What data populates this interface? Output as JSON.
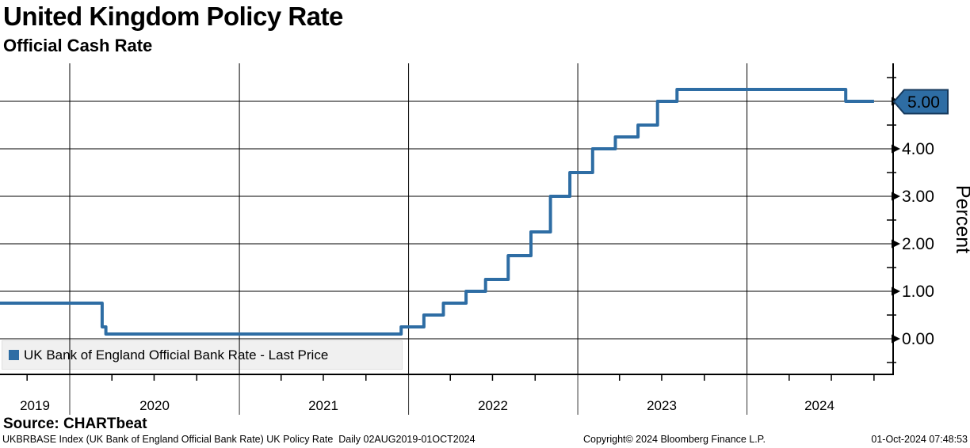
{
  "header": {
    "title": "United Kingdom Policy Rate",
    "subtitle": "Official Cash Rate"
  },
  "legend": {
    "label": "UK Bank of England Official Bank Rate - Last Price",
    "swatch_color": "#2e6da4"
  },
  "axes": {
    "y": {
      "title": "Percent",
      "labels": [
        "0.00",
        "1.00",
        "2.00",
        "3.00",
        "4.00"
      ],
      "last_price_badge": "5.00"
    },
    "x": {
      "labels": [
        "2019",
        "2020",
        "2021",
        "2022",
        "2023",
        "2024"
      ]
    }
  },
  "footer": {
    "source": "Source: CHARTbeat",
    "info": "UKBRBASE Index (UK Bank of England Official Bank Rate) UK Policy Rate  Daily 02AUG2019-01OCT2024",
    "copyright": "Copyright© 2024 Bloomberg Finance L.P.",
    "timestamp": "01-Oct-2024 07:48:53"
  },
  "chart_data": {
    "type": "line",
    "line_style": "step-after",
    "title": "United Kingdom Policy Rate - Official Cash Rate",
    "ylabel": "Percent",
    "x_range": [
      "02AUG2019",
      "01OCT2024"
    ],
    "ylim": [
      -0.75,
      5.8
    ],
    "y_major_ticks": [
      0.0,
      1.0,
      2.0,
      3.0,
      4.0,
      5.0
    ],
    "y_minor_tick_step": 0.5,
    "x_tick_years": [
      "2019",
      "2020",
      "2021",
      "2022",
      "2023",
      "2024"
    ],
    "grid": true,
    "legend_position": "bottom-left",
    "line_color": "#2e6da4",
    "badge_border_color": "#16395c",
    "last_price": 5.0,
    "series": [
      {
        "name": "UK Bank of England Official Bank Rate - Last Price",
        "points": [
          [
            "2019-08-02",
            0.75
          ],
          [
            "2020-03-11",
            0.25
          ],
          [
            "2020-03-19",
            0.1
          ],
          [
            "2021-12-16",
            0.25
          ],
          [
            "2022-02-03",
            0.5
          ],
          [
            "2022-03-17",
            0.75
          ],
          [
            "2022-05-05",
            1.0
          ],
          [
            "2022-06-16",
            1.25
          ],
          [
            "2022-08-04",
            1.75
          ],
          [
            "2022-09-22",
            2.25
          ],
          [
            "2022-11-03",
            3.0
          ],
          [
            "2022-12-15",
            3.5
          ],
          [
            "2023-02-02",
            4.0
          ],
          [
            "2023-03-23",
            4.25
          ],
          [
            "2023-05-11",
            4.5
          ],
          [
            "2023-06-22",
            5.0
          ],
          [
            "2023-08-03",
            5.25
          ],
          [
            "2024-08-01",
            5.0
          ],
          [
            "2024-10-01",
            5.0
          ]
        ]
      }
    ]
  }
}
